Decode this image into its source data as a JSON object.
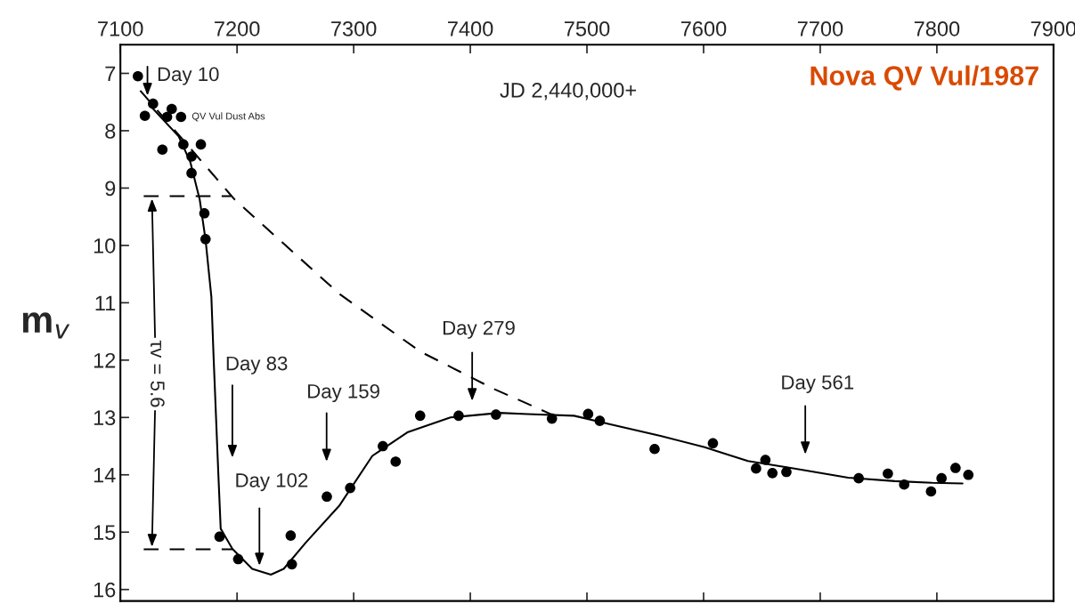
{
  "chart_data": {
    "type": "scatter",
    "title": "Nova QV Vul/1987",
    "ylabel": "m$_{v}$",
    "xlim": [
      7100,
      7900
    ],
    "xticks": [
      7100,
      7200,
      7300,
      7400,
      7500,
      7600,
      7700,
      7800,
      7900
    ],
    "ylim": [
      16.2,
      6.5
    ],
    "yticks": [
      7,
      8,
      9,
      10,
      11,
      12,
      13,
      14,
      15,
      16
    ],
    "grid": false,
    "legend": false,
    "series": [
      {
        "color": "#000000",
        "marker": "circle",
        "x": [
          7115,
          7121,
          7128,
          7136,
          7140,
          7144,
          7152,
          7154,
          7161,
          7161,
          7169,
          7172,
          7173,
          7185,
          7201,
          7246,
          7247,
          7277,
          7297,
          7325,
          7336,
          7357,
          7390,
          7422,
          7470,
          7501,
          7511,
          7558,
          7608,
          7645,
          7653,
          7659,
          7671,
          7733,
          7758,
          7772,
          7795,
          7804,
          7816,
          7827
        ],
        "values": [
          7.05,
          7.74,
          7.53,
          8.33,
          7.76,
          7.62,
          7.76,
          8.24,
          8.45,
          8.74,
          8.24,
          9.44,
          9.89,
          15.08,
          15.47,
          15.06,
          15.56,
          14.38,
          14.23,
          13.5,
          13.77,
          12.97,
          12.97,
          12.95,
          13.02,
          12.94,
          13.06,
          13.55,
          13.45,
          13.89,
          13.74,
          13.97,
          13.95,
          14.06,
          13.98,
          14.17,
          14.29,
          14.06,
          13.88,
          14.0
        ]
      },
      {
        "type": "line",
        "color": "#000000",
        "line_style": "dashed",
        "marker": "none",
        "x": [
          7117,
          7198,
          7288,
          7357,
          7420,
          7470
        ],
        "values": [
          7.3,
          9.2,
          10.85,
          11.85,
          12.5,
          12.95
        ]
      },
      {
        "type": "line",
        "color": "#000000",
        "line_style": "solid",
        "marker": "none",
        "x": [
          7125,
          7150,
          7160,
          7168,
          7173,
          7178,
          7180,
          7184,
          7186,
          7196,
          7213,
          7229,
          7240,
          7259,
          7288,
          7316,
          7346,
          7383,
          7425,
          7449,
          7489,
          7520,
          7563,
          7601,
          7638,
          7678,
          7724,
          7764,
          7796,
          7822
        ],
        "values": [
          7.55,
          8.1,
          8.55,
          9.2,
          9.9,
          10.9,
          12.0,
          14.0,
          14.94,
          15.29,
          15.64,
          15.74,
          15.64,
          15.18,
          14.53,
          13.67,
          13.26,
          13.0,
          12.92,
          12.94,
          12.97,
          13.12,
          13.32,
          13.52,
          13.76,
          13.89,
          14.05,
          14.11,
          14.14,
          14.15
        ]
      },
      {
        "type": "line",
        "color": "#000000",
        "line_style": "dashed",
        "marker": "none",
        "x": [
          7120,
          7195
        ],
        "values": [
          9.14,
          9.14
        ]
      },
      {
        "type": "line",
        "color": "#000000",
        "line_style": "dashed",
        "marker": "none",
        "x": [
          7120,
          7196
        ],
        "values": [
          15.3,
          15.3
        ]
      }
    ],
    "annotations": [
      "JD 2,440,000+",
      "Day 10",
      "Day 83",
      "Day 102",
      "Day 159",
      "Day 279",
      "Day 561",
      "τv = 5.6",
      {
        "text": "QV Vul Dust Abs",
        "x": 7140,
        "y": 7.76
      }
    ]
  }
}
